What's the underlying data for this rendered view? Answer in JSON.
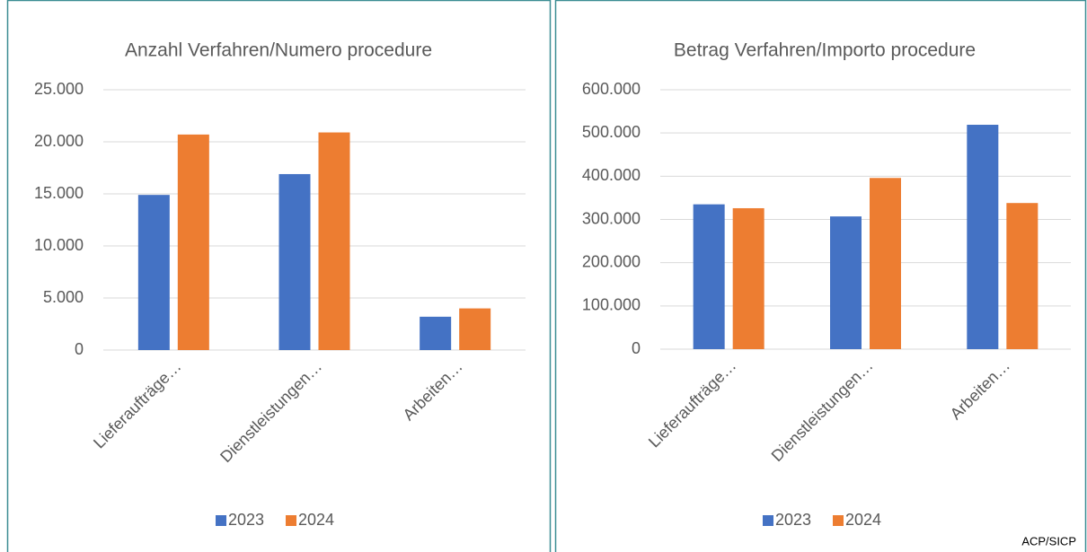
{
  "chart_data": [
    {
      "type": "bar",
      "title": "Anzahl Verfahren/Numero procedure",
      "categories": [
        "Lieferaufträge…",
        "Dienstleistungen…",
        "Arbeiten…"
      ],
      "series": [
        {
          "name": "2023",
          "color": "#4472c4",
          "values": [
            14900,
            16900,
            3200
          ]
        },
        {
          "name": "2024",
          "color": "#ed7d31",
          "values": [
            20700,
            20900,
            4000
          ]
        }
      ],
      "ylim": [
        0,
        25000
      ],
      "yticks": [
        0,
        {
          "value": 5000,
          "label": "5.000"
        },
        {
          "value": 10000,
          "label": "10.000"
        },
        {
          "value": 15000,
          "label": "15.000"
        },
        {
          "value": 20000,
          "label": "20.000"
        },
        {
          "value": 25000,
          "label": "25.000"
        }
      ],
      "grid": true,
      "legend": "bottom"
    },
    {
      "type": "bar",
      "title": "Betrag Verfahren/Importo procedure",
      "categories": [
        "Lieferaufträge…",
        "Dienstleistungen…",
        "Arbeiten…"
      ],
      "series": [
        {
          "name": "2023",
          "color": "#4472c4",
          "values": [
            335000,
            307000,
            519000
          ]
        },
        {
          "name": "2024",
          "color": "#ed7d31",
          "values": [
            326000,
            396000,
            338000
          ]
        }
      ],
      "ylim": [
        0,
        600000
      ],
      "yticks": [
        0,
        {
          "value": 100000,
          "label": "100.000"
        },
        {
          "value": 200000,
          "label": "200.000"
        },
        {
          "value": 300000,
          "label": "300.000"
        },
        {
          "value": 400000,
          "label": "400.000"
        },
        {
          "value": 500000,
          "label": "500.000"
        },
        {
          "value": 600000,
          "label": "600.000"
        }
      ],
      "grid": true,
      "legend": "bottom"
    }
  ],
  "source": "ACP/SICP"
}
